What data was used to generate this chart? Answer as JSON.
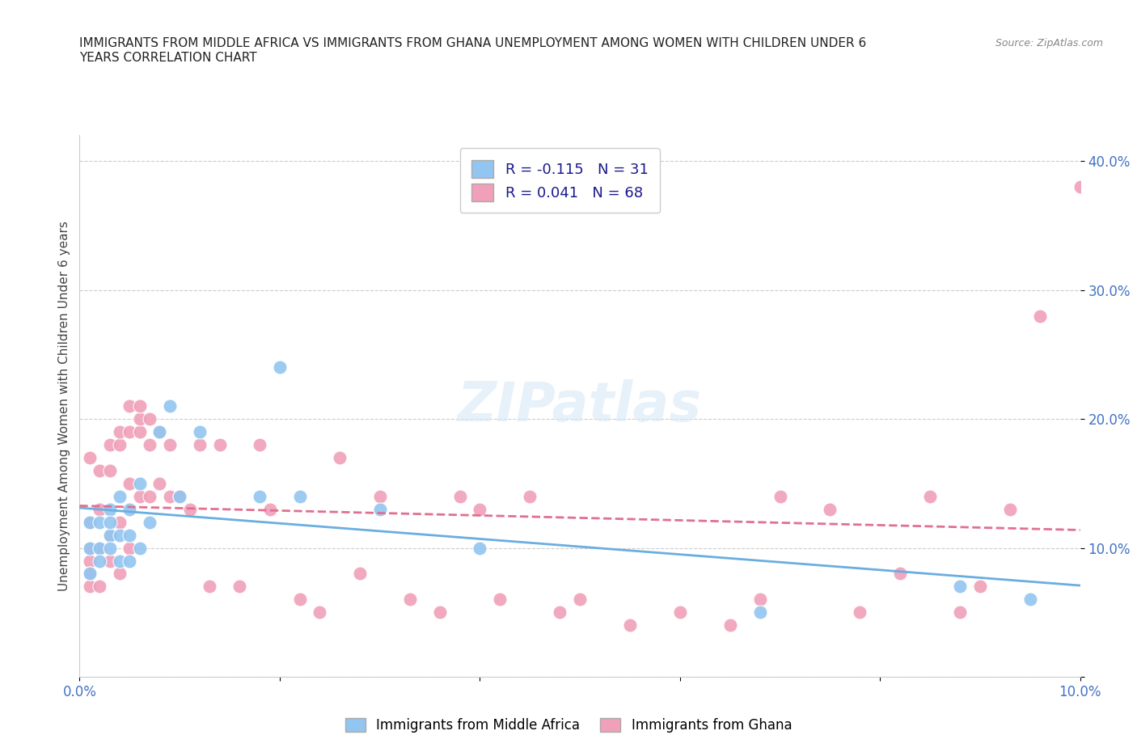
{
  "title": "IMMIGRANTS FROM MIDDLE AFRICA VS IMMIGRANTS FROM GHANA UNEMPLOYMENT AMONG WOMEN WITH CHILDREN UNDER 6\nYEARS CORRELATION CHART",
  "source": "Source: ZipAtlas.com",
  "ylabel": "Unemployment Among Women with Children Under 6 years",
  "xlim": [
    0.0,
    0.1
  ],
  "ylim": [
    0.0,
    0.42
  ],
  "xticks": [
    0.0,
    0.02,
    0.04,
    0.06,
    0.08,
    0.1
  ],
  "yticks": [
    0.0,
    0.1,
    0.2,
    0.3,
    0.4
  ],
  "color_blue": "#92C5F0",
  "color_pink": "#F0A0B8",
  "line_color_blue": "#6AAEE0",
  "line_color_pink": "#E07090",
  "R_blue": -0.115,
  "N_blue": 31,
  "R_pink": 0.041,
  "N_pink": 68,
  "label_blue": "Immigrants from Middle Africa",
  "label_pink": "Immigrants from Ghana",
  "watermark": "ZIPatlas",
  "bg_color": "#FFFFFF",
  "grid_color": "#CCCCCC",
  "blue_x": [
    0.001,
    0.001,
    0.001,
    0.002,
    0.002,
    0.002,
    0.003,
    0.003,
    0.003,
    0.003,
    0.004,
    0.004,
    0.004,
    0.005,
    0.005,
    0.005,
    0.006,
    0.006,
    0.007,
    0.008,
    0.009,
    0.01,
    0.012,
    0.018,
    0.02,
    0.022,
    0.03,
    0.04,
    0.068,
    0.088,
    0.095
  ],
  "blue_y": [
    0.1,
    0.12,
    0.08,
    0.1,
    0.12,
    0.09,
    0.13,
    0.11,
    0.1,
    0.12,
    0.14,
    0.09,
    0.11,
    0.13,
    0.11,
    0.09,
    0.15,
    0.1,
    0.12,
    0.19,
    0.21,
    0.14,
    0.19,
    0.14,
    0.24,
    0.14,
    0.13,
    0.1,
    0.05,
    0.07,
    0.06
  ],
  "pink_x": [
    0.001,
    0.001,
    0.001,
    0.001,
    0.001,
    0.001,
    0.002,
    0.002,
    0.002,
    0.002,
    0.003,
    0.003,
    0.003,
    0.003,
    0.004,
    0.004,
    0.004,
    0.004,
    0.005,
    0.005,
    0.005,
    0.005,
    0.006,
    0.006,
    0.006,
    0.006,
    0.007,
    0.007,
    0.007,
    0.008,
    0.008,
    0.009,
    0.009,
    0.01,
    0.011,
    0.012,
    0.013,
    0.014,
    0.016,
    0.018,
    0.019,
    0.022,
    0.024,
    0.026,
    0.028,
    0.03,
    0.033,
    0.036,
    0.038,
    0.04,
    0.042,
    0.045,
    0.048,
    0.05,
    0.055,
    0.06,
    0.065,
    0.068,
    0.07,
    0.075,
    0.078,
    0.082,
    0.085,
    0.088,
    0.09,
    0.093,
    0.096,
    0.1
  ],
  "pink_y": [
    0.1,
    0.07,
    0.09,
    0.12,
    0.08,
    0.17,
    0.1,
    0.07,
    0.13,
    0.16,
    0.09,
    0.11,
    0.16,
    0.18,
    0.08,
    0.18,
    0.12,
    0.19,
    0.1,
    0.15,
    0.19,
    0.21,
    0.19,
    0.2,
    0.14,
    0.21,
    0.14,
    0.18,
    0.2,
    0.15,
    0.19,
    0.14,
    0.18,
    0.14,
    0.13,
    0.18,
    0.07,
    0.18,
    0.07,
    0.18,
    0.13,
    0.06,
    0.05,
    0.17,
    0.08,
    0.14,
    0.06,
    0.05,
    0.14,
    0.13,
    0.06,
    0.14,
    0.05,
    0.06,
    0.04,
    0.05,
    0.04,
    0.06,
    0.14,
    0.13,
    0.05,
    0.08,
    0.14,
    0.05,
    0.07,
    0.13,
    0.28,
    0.38
  ]
}
